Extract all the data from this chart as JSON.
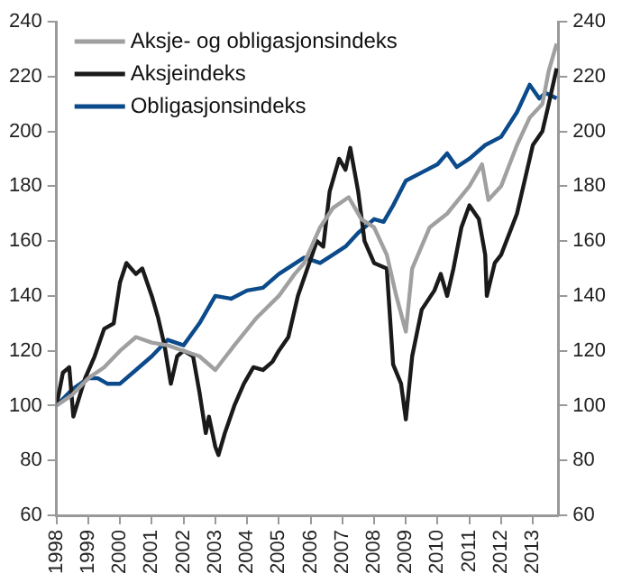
{
  "chart_data": {
    "type": "line",
    "xlim": [
      1998,
      2013.8
    ],
    "xticks": [
      1998,
      1999,
      2000,
      2001,
      2002,
      2003,
      2004,
      2005,
      2006,
      2007,
      2008,
      2009,
      2010,
      2011,
      2012,
      2013
    ],
    "ylim": [
      60,
      240
    ],
    "yticks": [
      60,
      80,
      100,
      120,
      140,
      160,
      180,
      200,
      220,
      240
    ],
    "y2lim": [
      60,
      240
    ],
    "y2ticks": [
      60,
      80,
      100,
      120,
      140,
      160,
      180,
      200,
      220,
      240
    ],
    "grid": false,
    "legend": "top left",
    "marker": "none",
    "line_style": "solid",
    "series": [
      {
        "name": "Aksje- og obligasjonsindeks",
        "color": "#a0a0a0",
        "x": [
          1998,
          1998.5,
          1999,
          1999.5,
          2000,
          2000.5,
          2001,
          2001.5,
          2002,
          2002.5,
          2003,
          2003.6,
          2004.3,
          2005,
          2005.5,
          2005.8,
          2006.3,
          2006.7,
          2007.2,
          2007.6,
          2008,
          2008.4,
          2008.7,
          2009,
          2009.2,
          2009.75,
          2010.3,
          2011,
          2011.4,
          2011.6,
          2012,
          2012.5,
          2012.9,
          2013.3,
          2013.5,
          2013.75
        ],
        "values": [
          100,
          104,
          110,
          114,
          120,
          125,
          123,
          122,
          120,
          118,
          113,
          122,
          132,
          140,
          148,
          152,
          165,
          172,
          176,
          168,
          165,
          155,
          140,
          127,
          150,
          165,
          170,
          180,
          188,
          175,
          180,
          195,
          205,
          210,
          222,
          232
        ]
      },
      {
        "name": "Aksjeindeks",
        "color": "#1a1a1a",
        "x": [
          1998,
          1998.2,
          1998.4,
          1998.53,
          1998.9,
          1999.2,
          1999.5,
          1999.8,
          2000,
          2000.2,
          2000.5,
          2000.7,
          2001,
          2001.2,
          2001.4,
          2001.6,
          2001.8,
          2002,
          2002.3,
          2002.5,
          2002.7,
          2002.8,
          2003,
          2003.1,
          2003.3,
          2003.6,
          2003.9,
          2004.2,
          2004.5,
          2004.8,
          2005,
          2005.3,
          2005.6,
          2005.9,
          2006.2,
          2006.4,
          2006.6,
          2006.9,
          2007.1,
          2007.25,
          2007.5,
          2007.7,
          2008,
          2008.4,
          2008.6,
          2008.85,
          2009,
          2009.2,
          2009.5,
          2009.9,
          2010.1,
          2010.3,
          2010.5,
          2010.75,
          2011,
          2011.3,
          2011.5,
          2011.55,
          2011.8,
          2012,
          2012.5,
          2012.8,
          2013,
          2013.3,
          2013.5,
          2013.75
        ],
        "values": [
          100,
          112,
          114,
          96,
          110,
          118,
          128,
          130,
          145,
          152,
          148,
          150,
          140,
          132,
          122,
          108,
          118,
          120,
          118,
          105,
          90,
          96,
          85,
          82,
          90,
          100,
          108,
          114,
          113,
          116,
          120,
          125,
          140,
          150,
          160,
          158,
          178,
          190,
          186,
          194,
          178,
          160,
          152,
          150,
          115,
          108,
          95,
          118,
          135,
          142,
          148,
          140,
          150,
          165,
          173,
          168,
          155,
          140,
          152,
          155,
          170,
          185,
          195,
          200,
          210,
          223
        ]
      },
      {
        "name": "Obligasjonsindeks",
        "color": "#0b4a8b",
        "x": [
          1998,
          1998.5,
          1999,
          1999.3,
          1999.6,
          2000,
          2000.5,
          2001,
          2001.5,
          2002,
          2002.5,
          2003,
          2003.5,
          2004,
          2004.5,
          2005,
          2005.8,
          2006.3,
          2006.7,
          2007.1,
          2007.5,
          2008,
          2008.3,
          2008.6,
          2009,
          2009.5,
          2010,
          2010.3,
          2010.6,
          2011,
          2011.5,
          2012,
          2012.5,
          2012.9,
          2013.2,
          2013.4,
          2013.75
        ],
        "values": [
          100,
          106,
          110,
          110,
          108,
          108,
          113,
          118,
          124,
          122,
          130,
          140,
          139,
          142,
          143,
          148,
          154,
          152,
          155,
          158,
          163,
          168,
          167,
          173,
          182,
          185,
          188,
          192,
          187,
          190,
          195,
          198,
          207,
          217,
          212,
          214,
          212
        ]
      }
    ]
  }
}
